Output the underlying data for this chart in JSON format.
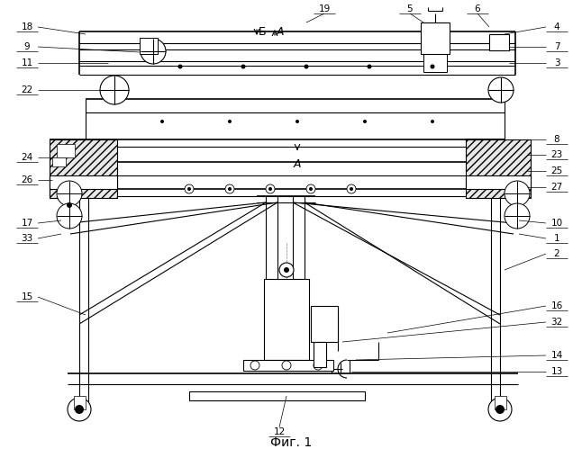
{
  "bg_color": "#ffffff",
  "figcaption": "Фиг. 1",
  "section_label_b": "Б",
  "section_label_a": "А",
  "label_a_inside": "А",
  "label_12": "12",
  "labels_left": [
    "18",
    "9",
    "11",
    "22",
    "24",
    "26",
    "17",
    "33",
    "15"
  ],
  "labels_right": [
    "4",
    "7",
    "3",
    "8",
    "23",
    "25",
    "27",
    "10",
    "1",
    "2",
    "16",
    "32",
    "14",
    "13"
  ],
  "labels_top": [
    "19",
    "5",
    "6"
  ]
}
